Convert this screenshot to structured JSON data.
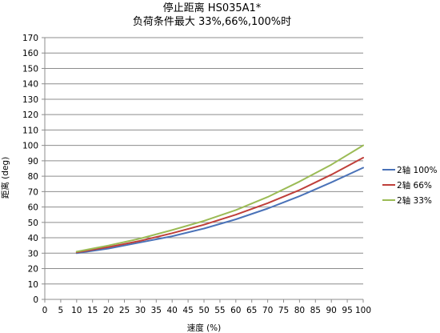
{
  "chart_data": {
    "type": "line",
    "title": "停止距离 HS035A1*",
    "subtitle": "负荷条件最大 33%,66%,100%时",
    "xlabel": "速度 (%)",
    "ylabel": "距离 (deg)",
    "xlim": [
      0,
      100
    ],
    "ylim": [
      0,
      170
    ],
    "xticks": [
      0,
      5,
      10,
      15,
      20,
      25,
      30,
      35,
      40,
      45,
      50,
      55,
      60,
      65,
      70,
      75,
      80,
      85,
      90,
      95,
      100
    ],
    "yticks": [
      0,
      10,
      20,
      30,
      40,
      50,
      60,
      70,
      80,
      90,
      100,
      110,
      120,
      130,
      140,
      150,
      160,
      170
    ],
    "grid": "horizontal",
    "legend_position": "right",
    "x": [
      10,
      20,
      30,
      40,
      50,
      60,
      70,
      80,
      90,
      100
    ],
    "series": [
      {
        "name": "2轴 100%",
        "color": "#4a72b8",
        "values": [
          30,
          33,
          37,
          41,
          46,
          52,
          59,
          67,
          76,
          85.5
        ]
      },
      {
        "name": "2轴 66%",
        "color": "#bf3f3a",
        "values": [
          30.5,
          34,
          38,
          43,
          48.5,
          55,
          62.5,
          71,
          81,
          92
        ]
      },
      {
        "name": "2轴 33%",
        "color": "#9bbb55",
        "values": [
          31,
          35,
          39.5,
          45,
          51,
          58,
          66.5,
          76.5,
          87.5,
          100
        ]
      }
    ]
  }
}
